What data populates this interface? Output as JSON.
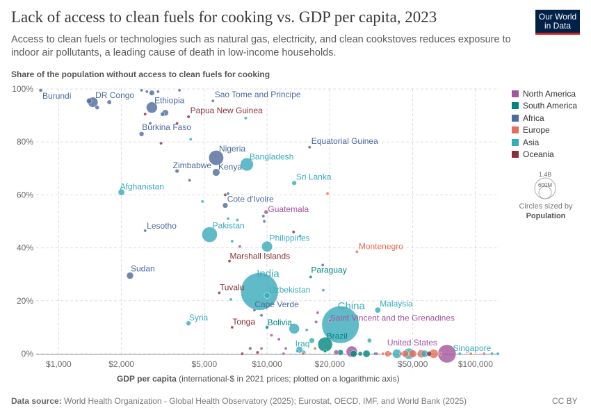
{
  "title": "Lack of access to clean fuels for cooking vs. GDP per capita, 2023",
  "subtitle": "Access to clean fuels or technologies such as natural gas, electricity, and clean cookstoves reduces exposure to indoor air pollutants, a leading cause of death in low-income households.",
  "logo": {
    "line1": "Our World",
    "line2": "in Data"
  },
  "y_axis_title": "Share of the population without access to clean fuels for cooking",
  "x_axis_title_bold": "GDP per capita",
  "x_axis_title_rest": " (international-$ in 2021 prices; plotted on a logarithmic axis)",
  "legend": [
    {
      "name": "North America",
      "color": "#a2559c"
    },
    {
      "name": "South America",
      "color": "#00847e"
    },
    {
      "name": "Africa",
      "color": "#4c6a9c"
    },
    {
      "name": "Europe",
      "color": "#e56e5a"
    },
    {
      "name": "Asia",
      "color": "#38aaba"
    },
    {
      "name": "Oceania",
      "color": "#883039"
    }
  ],
  "size_legend": {
    "large": "1.4B",
    "small": "600M",
    "caption": "Circles sized by",
    "caption_bold": "Population"
  },
  "footer": {
    "label": "Data source:",
    "text": " World Health Organization - Global Health Observatory (2025); Eurostat, OECD, IMF, and World Bank (2025)"
  },
  "license": "CC BY",
  "chart_data": {
    "type": "scatter",
    "xscale": "log",
    "xlim": [
      780,
      130000
    ],
    "ylim": [
      0,
      100
    ],
    "x_ticks": [
      {
        "v": 1000,
        "l": "$1,000"
      },
      {
        "v": 2000,
        "l": "$2,000"
      },
      {
        "v": 5000,
        "l": "$5,000"
      },
      {
        "v": 10000,
        "l": "$10,000"
      },
      {
        "v": 20000,
        "l": "$20,000"
      },
      {
        "v": 50000,
        "l": "$50,000"
      },
      {
        "v": 100000,
        "l": "$100,000"
      }
    ],
    "y_ticks": [
      {
        "v": 0,
        "l": "0%"
      },
      {
        "v": 20,
        "l": "20%"
      },
      {
        "v": 40,
        "l": "40%"
      },
      {
        "v": 60,
        "l": "60%"
      },
      {
        "v": 80,
        "l": "80%"
      },
      {
        "v": 100,
        "l": "100%"
      }
    ],
    "grid": true,
    "points": [
      {
        "label": "Burundi",
        "x": 820,
        "y": 99.5,
        "pop": 13,
        "region": "Africa",
        "lx": 2,
        "ly": 12
      },
      {
        "label": "DR Congo",
        "x": 1460,
        "y": 95,
        "pop": 105,
        "region": "Africa",
        "lx": 2,
        "ly": -6
      },
      {
        "label": "Ethiopia",
        "x": 2800,
        "y": 93,
        "pop": 126,
        "region": "Africa",
        "lx": 2,
        "ly": -6
      },
      {
        "label": "Papua New Guinea",
        "x": 4200,
        "y": 89.5,
        "pop": 10,
        "region": "Oceania",
        "lx": 2,
        "ly": -5
      },
      {
        "label": "Sao Tome and Principe",
        "x": 5500,
        "y": 95.5,
        "pop": 0.2,
        "region": "Africa",
        "lx": 2,
        "ly": -5
      },
      {
        "label": "Burkina Faso",
        "x": 2500,
        "y": 83,
        "pop": 23,
        "region": "Africa",
        "lx": 0,
        "ly": -6
      },
      {
        "label": "Equatorial Guinea",
        "x": 16000,
        "y": 78,
        "pop": 1.7,
        "region": "Africa",
        "lx": 2,
        "ly": -5
      },
      {
        "label": "Nigeria",
        "x": 5700,
        "y": 74,
        "pop": 223,
        "region": "Africa",
        "lx": 2,
        "ly": -9
      },
      {
        "label": "Bangladesh",
        "x": 8000,
        "y": 71.5,
        "pop": 172,
        "region": "Asia",
        "lx": 2,
        "ly": -7
      },
      {
        "label": "Zimbabwe",
        "x": 3700,
        "y": 69,
        "pop": 16,
        "region": "Africa",
        "lx": -6,
        "ly": -4
      },
      {
        "label": "Kenya",
        "x": 5700,
        "y": 68.5,
        "pop": 55,
        "region": "Africa",
        "lx": 2,
        "ly": -4
      },
      {
        "label": "Sri Lanka",
        "x": 13500,
        "y": 64.5,
        "pop": 22,
        "region": "Asia",
        "lx": 2,
        "ly": -5
      },
      {
        "label": "Afghanistan",
        "x": 2000,
        "y": 61,
        "pop": 42,
        "region": "Asia",
        "lx": -2,
        "ly": -4
      },
      {
        "label": "Cote d'Ivoire",
        "x": 6300,
        "y": 56,
        "pop": 29,
        "region": "Africa",
        "lx": 2,
        "ly": -5
      },
      {
        "label": "Guatemala",
        "x": 9900,
        "y": 53.5,
        "pop": 18,
        "region": "North America",
        "lx": 2,
        "ly": 0
      },
      {
        "label": "Lesotho",
        "x": 2600,
        "y": 46.5,
        "pop": 2.3,
        "region": "Africa",
        "lx": 2,
        "ly": -3
      },
      {
        "label": "Pakistan",
        "x": 5300,
        "y": 45,
        "pop": 240,
        "region": "Asia",
        "lx": 2,
        "ly": -9
      },
      {
        "label": "Philippines",
        "x": 10000,
        "y": 40.5,
        "pop": 117,
        "region": "Asia",
        "lx": 2,
        "ly": -8
      },
      {
        "label": "Montenegro",
        "x": 27000,
        "y": 38.5,
        "pop": 0.6,
        "region": "Europe",
        "lx": 2,
        "ly": -4
      },
      {
        "label": "Marshall Islands",
        "x": 6600,
        "y": 35,
        "pop": 0.04,
        "region": "Oceania",
        "lx": 0,
        "ly": -3
      },
      {
        "label": "Sudan",
        "x": 2200,
        "y": 29.5,
        "pop": 48,
        "region": "Africa",
        "lx": 0,
        "ly": -6
      },
      {
        "label": "Paraguay",
        "x": 16200,
        "y": 29,
        "pop": 6.9,
        "region": "South America",
        "lx": 0,
        "ly": -6
      },
      {
        "label": "India",
        "x": 9200,
        "y": 23.5,
        "pop": 1430,
        "region": "Asia",
        "lx": 2,
        "ly": -21
      },
      {
        "label": "Uzbekistan",
        "x": 10000,
        "y": 22,
        "pop": 35,
        "region": "Asia",
        "lx": 2,
        "ly": -4
      },
      {
        "label": "Tuvalu",
        "x": 5900,
        "y": 23,
        "pop": 0.01,
        "region": "Oceania",
        "lx": 0,
        "ly": -4
      },
      {
        "label": "Cape Verde",
        "x": 8700,
        "y": 16.5,
        "pop": 0.6,
        "region": "Africa",
        "lx": 0,
        "ly": -4
      },
      {
        "label": "Malaysia",
        "x": 34000,
        "y": 16.5,
        "pop": 34,
        "region": "Asia",
        "lx": 2,
        "ly": -5
      },
      {
        "label": "China",
        "x": 22500,
        "y": 11,
        "pop": 1410,
        "region": "Asia",
        "lx": 2,
        "ly": -22
      },
      {
        "label": "Saint Vincent and the Grenadines",
        "x": 20000,
        "y": 12.5,
        "pop": 0.1,
        "region": "North America",
        "lx": 0,
        "ly": 0
      },
      {
        "label": "Syria",
        "x": 4200,
        "y": 11.5,
        "pop": 23,
        "region": "Asia",
        "lx": 0,
        "ly": -4
      },
      {
        "label": "Tonga",
        "x": 6800,
        "y": 10,
        "pop": 0.1,
        "region": "Oceania",
        "lx": 0,
        "ly": -4
      },
      {
        "label": "Bolivia",
        "x": 10000,
        "y": 10,
        "pop": 12,
        "region": "South America",
        "lx": 0,
        "ly": -3
      },
      {
        "label": "Brazil",
        "x": 19000,
        "y": 3.5,
        "pop": 216,
        "region": "South America",
        "lx": 0,
        "ly": -8
      },
      {
        "label": "Iraq",
        "x": 14300,
        "y": 1.5,
        "pop": 45,
        "region": "Asia",
        "lx": -6,
        "ly": -5
      },
      {
        "label": "United States",
        "x": 73000,
        "y": 0,
        "pop": 335,
        "region": "North America",
        "lx": -86,
        "ly": -12
      },
      {
        "label": "Singapore",
        "x": 120000,
        "y": 0,
        "pop": 6,
        "region": "Asia",
        "lx": -56,
        "ly": -4
      },
      {
        "label": "",
        "x": 2800,
        "y": 98.5,
        "pop": 28,
        "region": "Africa"
      },
      {
        "label": "",
        "x": 2650,
        "y": 99,
        "pop": 9,
        "region": "Africa"
      },
      {
        "label": "",
        "x": 2500,
        "y": 99.5,
        "pop": 6,
        "region": "Africa"
      },
      {
        "label": "",
        "x": 3000,
        "y": 99,
        "pop": 8,
        "region": "Africa"
      },
      {
        "label": "",
        "x": 3800,
        "y": 99.5,
        "pop": 8,
        "region": "Africa"
      },
      {
        "label": "",
        "x": 1750,
        "y": 95,
        "pop": 20,
        "region": "Africa"
      },
      {
        "label": "",
        "x": 1530,
        "y": 93,
        "pop": 18,
        "region": "Africa"
      },
      {
        "label": "",
        "x": 1400,
        "y": 95.5,
        "pop": 30,
        "region": "Africa"
      },
      {
        "label": "",
        "x": 3250,
        "y": 91,
        "pop": 40,
        "region": "Africa"
      },
      {
        "label": "",
        "x": 3150,
        "y": 90.5,
        "pop": 19,
        "region": "Africa"
      },
      {
        "label": "",
        "x": 2750,
        "y": 87,
        "pop": 3,
        "region": "Africa"
      },
      {
        "label": "",
        "x": 2600,
        "y": 90.5,
        "pop": 0.4,
        "region": "Oceania"
      },
      {
        "label": "",
        "x": 3700,
        "y": 87,
        "pop": 0.7,
        "region": "Oceania"
      },
      {
        "label": "",
        "x": 7900,
        "y": 89,
        "pop": 1.5,
        "region": "Asia"
      },
      {
        "label": "",
        "x": 3100,
        "y": 79.5,
        "pop": 0.8,
        "region": "Oceania"
      },
      {
        "label": "",
        "x": 4300,
        "y": 81,
        "pop": 1.3,
        "region": "Asia"
      },
      {
        "label": "",
        "x": 4250,
        "y": 65.5,
        "pop": 10,
        "region": "Africa"
      },
      {
        "label": "",
        "x": 6500,
        "y": 60.5,
        "pop": 2.5,
        "region": "Africa"
      },
      {
        "label": "",
        "x": 6300,
        "y": 60,
        "pop": 0.3,
        "region": "Oceania"
      },
      {
        "label": "",
        "x": 19500,
        "y": 60.5,
        "pop": 0.1,
        "region": "Europe"
      },
      {
        "label": "",
        "x": 4900,
        "y": 57.5,
        "pop": 7,
        "region": "Asia"
      },
      {
        "label": "",
        "x": 9600,
        "y": 52,
        "pop": 3.5,
        "region": "Africa"
      },
      {
        "label": "",
        "x": 9700,
        "y": 50,
        "pop": 2.5,
        "region": "Africa"
      },
      {
        "label": "",
        "x": 7200,
        "y": 50.5,
        "pop": 4,
        "region": "Asia"
      },
      {
        "label": "",
        "x": 6500,
        "y": 51,
        "pop": 1.1,
        "region": "Asia"
      },
      {
        "label": "",
        "x": 13400,
        "y": 46,
        "pop": 0.9,
        "region": "Oceania"
      },
      {
        "label": "",
        "x": 14400,
        "y": 44.5,
        "pop": 0.5,
        "region": "Asia"
      },
      {
        "label": "",
        "x": 6800,
        "y": 42.5,
        "pop": 3,
        "region": "Asia"
      },
      {
        "label": "",
        "x": 7400,
        "y": 40.5,
        "pop": 6.5,
        "region": "North America"
      },
      {
        "label": "",
        "x": 18500,
        "y": 33.5,
        "pop": 2.6,
        "region": "Africa"
      },
      {
        "label": "",
        "x": 18600,
        "y": 24,
        "pop": 1.1,
        "region": "Asia"
      },
      {
        "label": "",
        "x": 6700,
        "y": 20.5,
        "pop": 1.3,
        "region": "Asia"
      },
      {
        "label": "",
        "x": 17500,
        "y": 15.5,
        "pop": 4.5,
        "region": "North America"
      },
      {
        "label": "",
        "x": 9400,
        "y": 14.5,
        "pop": 1.2,
        "region": "Africa"
      },
      {
        "label": "",
        "x": 13500,
        "y": 9.5,
        "pop": 110,
        "region": "Asia"
      },
      {
        "label": "",
        "x": 15500,
        "y": 9,
        "pop": 4,
        "region": "Asia"
      },
      {
        "label": "",
        "x": 16400,
        "y": 5,
        "pop": 30,
        "region": "Asia"
      },
      {
        "label": "",
        "x": 31000,
        "y": 5,
        "pop": 20,
        "region": "Asia"
      },
      {
        "label": "",
        "x": 17200,
        "y": 12,
        "pop": 10.5,
        "region": "North America"
      },
      {
        "label": "",
        "x": 9400,
        "y": 2,
        "pop": 2.5,
        "region": "North America"
      },
      {
        "label": "",
        "x": 8300,
        "y": 2,
        "pop": 11,
        "region": "Africa"
      },
      {
        "label": "",
        "x": 10500,
        "y": 7,
        "pop": 1.5,
        "region": "North America"
      },
      {
        "label": "",
        "x": 11400,
        "y": 5.5,
        "pop": 4,
        "region": "North America"
      },
      {
        "label": "",
        "x": 12300,
        "y": 2,
        "pop": 3,
        "region": "North America"
      },
      {
        "label": "",
        "x": 14000,
        "y": 1,
        "pop": 8,
        "region": "Asia"
      },
      {
        "label": "",
        "x": 15000,
        "y": 0.5,
        "pop": 18,
        "region": "Asia"
      },
      {
        "label": "",
        "x": 21500,
        "y": 0.5,
        "pop": 25,
        "region": "North America"
      },
      {
        "label": "",
        "x": 22500,
        "y": 0.5,
        "pop": 33,
        "region": "South America"
      },
      {
        "label": "",
        "x": 26000,
        "y": 0,
        "pop": 46,
        "region": "South America"
      },
      {
        "label": "",
        "x": 28000,
        "y": 0,
        "pop": 19,
        "region": "South America"
      },
      {
        "label": "",
        "x": 30000,
        "y": 0,
        "pop": 52,
        "region": "South America"
      },
      {
        "label": "",
        "x": 25500,
        "y": 0.8,
        "pop": 128,
        "region": "North America"
      },
      {
        "label": "",
        "x": 33000,
        "y": 0,
        "pop": 3.4,
        "region": "South America"
      },
      {
        "label": "",
        "x": 38000,
        "y": 0,
        "pop": 38,
        "region": "Europe"
      },
      {
        "label": "",
        "x": 42000,
        "y": 0,
        "pop": 85,
        "region": "Asia"
      },
      {
        "label": "",
        "x": 46000,
        "y": 0,
        "pop": 48,
        "region": "Europe"
      },
      {
        "label": "",
        "x": 48000,
        "y": 0,
        "pop": 125,
        "region": "Asia"
      },
      {
        "label": "",
        "x": 50000,
        "y": 0,
        "pop": 59,
        "region": "Europe"
      },
      {
        "label": "",
        "x": 55000,
        "y": 0,
        "pop": 68,
        "region": "Europe"
      },
      {
        "label": "",
        "x": 57000,
        "y": 0,
        "pop": 51,
        "region": "Asia"
      },
      {
        "label": "",
        "x": 60000,
        "y": 0,
        "pop": 26,
        "region": "Oceania"
      },
      {
        "label": "",
        "x": 63000,
        "y": 0,
        "pop": 84,
        "region": "Europe"
      },
      {
        "label": "",
        "x": 68000,
        "y": 0,
        "pop": 5.5,
        "region": "Europe"
      },
      {
        "label": "",
        "x": 84000,
        "y": 0,
        "pop": 10,
        "region": "Asia"
      },
      {
        "label": "",
        "x": 95000,
        "y": 0,
        "pop": 0.6,
        "region": "Europe"
      },
      {
        "label": "",
        "x": 110000,
        "y": 0,
        "pop": 5.1,
        "region": "Europe"
      },
      {
        "label": "",
        "x": 128000,
        "y": 0,
        "pop": 2.7,
        "region": "Asia"
      },
      {
        "label": "",
        "x": 39000,
        "y": 0,
        "pop": 10.7,
        "region": "Europe"
      },
      {
        "label": "",
        "x": 44000,
        "y": 0,
        "pop": 10.4,
        "region": "Europe"
      },
      {
        "label": "",
        "x": 36000,
        "y": 0,
        "pop": 2.1,
        "region": "Europe"
      },
      {
        "label": "",
        "x": 33500,
        "y": 0,
        "pop": 0.2,
        "region": "North America"
      },
      {
        "label": "",
        "x": 19000,
        "y": 1,
        "pop": 0.6,
        "region": "South America"
      },
      {
        "label": "",
        "x": 14900,
        "y": 0,
        "pop": 7.9,
        "region": "Europe"
      },
      {
        "label": "",
        "x": 17000,
        "y": 2,
        "pop": 2.8,
        "region": "Europe"
      },
      {
        "label": "",
        "x": 12000,
        "y": 0,
        "pop": 0.3,
        "region": "North America"
      },
      {
        "label": "",
        "x": 9000,
        "y": 0.5,
        "pop": 0.5,
        "region": "Oceania"
      },
      {
        "label": "",
        "x": 7600,
        "y": 0,
        "pop": 0.2,
        "region": "Oceania"
      }
    ]
  }
}
